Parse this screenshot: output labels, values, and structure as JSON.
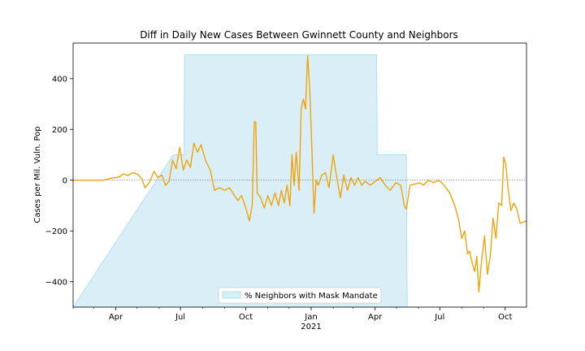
{
  "chart_data": {
    "type": "line",
    "title": "Diff in Daily New Cases Between Gwinnett County and Neighbors",
    "xlabel": "",
    "ylabel": "Cases per Mil. Vuln. Pop",
    "x_start": "2020-02-01",
    "x_end": "2021-10-31",
    "ylim": [
      -500,
      540
    ],
    "yticks": [
      -400,
      -200,
      0,
      200,
      400
    ],
    "xticks": [
      {
        "date": "2020-04-01",
        "label": "Apr"
      },
      {
        "date": "2020-07-01",
        "label": "Jul"
      },
      {
        "date": "2020-10-01",
        "label": "Oct"
      },
      {
        "date": "2021-01-01",
        "label": "Jan",
        "sublabel": "2021"
      },
      {
        "date": "2021-04-01",
        "label": "Apr"
      },
      {
        "date": "2021-07-01",
        "label": "Jul"
      },
      {
        "date": "2021-10-01",
        "label": "Oct"
      }
    ],
    "grid": false,
    "zero_line": true,
    "series": [
      {
        "name": "",
        "color": "#f0a30a",
        "points": [
          [
            "2020-02-01",
            0
          ],
          [
            "2020-03-01",
            0
          ],
          [
            "2020-03-15",
            0
          ],
          [
            "2020-03-25",
            8
          ],
          [
            "2020-04-05",
            12
          ],
          [
            "2020-04-12",
            25
          ],
          [
            "2020-04-18",
            18
          ],
          [
            "2020-04-25",
            30
          ],
          [
            "2020-05-01",
            25
          ],
          [
            "2020-05-08",
            5
          ],
          [
            "2020-05-12",
            -30
          ],
          [
            "2020-05-18",
            -10
          ],
          [
            "2020-05-25",
            35
          ],
          [
            "2020-05-30",
            10
          ],
          [
            "2020-06-05",
            20
          ],
          [
            "2020-06-10",
            -20
          ],
          [
            "2020-06-15",
            -5
          ],
          [
            "2020-06-20",
            80
          ],
          [
            "2020-06-25",
            45
          ],
          [
            "2020-06-30",
            130
          ],
          [
            "2020-07-05",
            40
          ],
          [
            "2020-07-10",
            80
          ],
          [
            "2020-07-15",
            50
          ],
          [
            "2020-07-20",
            145
          ],
          [
            "2020-07-25",
            110
          ],
          [
            "2020-07-30",
            140
          ],
          [
            "2020-08-05",
            80
          ],
          [
            "2020-08-12",
            40
          ],
          [
            "2020-08-18",
            -40
          ],
          [
            "2020-08-25",
            -30
          ],
          [
            "2020-09-01",
            -40
          ],
          [
            "2020-09-08",
            -30
          ],
          [
            "2020-09-15",
            -60
          ],
          [
            "2020-09-20",
            -80
          ],
          [
            "2020-09-25",
            -60
          ],
          [
            "2020-10-01",
            -110
          ],
          [
            "2020-10-06",
            -160
          ],
          [
            "2020-10-10",
            -100
          ],
          [
            "2020-10-13",
            230
          ],
          [
            "2020-10-15",
            230
          ],
          [
            "2020-10-17",
            -50
          ],
          [
            "2020-10-22",
            -70
          ],
          [
            "2020-10-27",
            -110
          ],
          [
            "2020-11-01",
            -60
          ],
          [
            "2020-11-06",
            -100
          ],
          [
            "2020-11-11",
            -50
          ],
          [
            "2020-11-16",
            -100
          ],
          [
            "2020-11-20",
            -40
          ],
          [
            "2020-11-24",
            -90
          ],
          [
            "2020-11-28",
            -20
          ],
          [
            "2020-12-02",
            -100
          ],
          [
            "2020-12-05",
            100
          ],
          [
            "2020-12-08",
            -20
          ],
          [
            "2020-12-11",
            110
          ],
          [
            "2020-12-15",
            -40
          ],
          [
            "2020-12-18",
            280
          ],
          [
            "2020-12-21",
            320
          ],
          [
            "2020-12-24",
            280
          ],
          [
            "2020-12-27",
            490
          ],
          [
            "2020-12-30",
            360
          ],
          [
            "2021-01-02",
            120
          ],
          [
            "2021-01-05",
            -130
          ],
          [
            "2021-01-08",
            0
          ],
          [
            "2021-01-11",
            -20
          ],
          [
            "2021-01-16",
            20
          ],
          [
            "2021-01-21",
            30
          ],
          [
            "2021-01-26",
            -30
          ],
          [
            "2021-02-01",
            100
          ],
          [
            "2021-02-06",
            10
          ],
          [
            "2021-02-11",
            -70
          ],
          [
            "2021-02-16",
            20
          ],
          [
            "2021-02-21",
            -40
          ],
          [
            "2021-02-26",
            10
          ],
          [
            "2021-03-03",
            -20
          ],
          [
            "2021-03-08",
            10
          ],
          [
            "2021-03-13",
            -20
          ],
          [
            "2021-03-18",
            -5
          ],
          [
            "2021-03-25",
            -20
          ],
          [
            "2021-04-01",
            -5
          ],
          [
            "2021-04-08",
            10
          ],
          [
            "2021-04-15",
            -20
          ],
          [
            "2021-04-22",
            -40
          ],
          [
            "2021-04-30",
            -10
          ],
          [
            "2021-05-07",
            -20
          ],
          [
            "2021-05-12",
            -100
          ],
          [
            "2021-05-15",
            -115
          ],
          [
            "2021-05-20",
            -20
          ],
          [
            "2021-05-27",
            -15
          ],
          [
            "2021-06-03",
            -10
          ],
          [
            "2021-06-08",
            -20
          ],
          [
            "2021-06-15",
            0
          ],
          [
            "2021-06-22",
            -10
          ],
          [
            "2021-06-30",
            0
          ],
          [
            "2021-07-07",
            -20
          ],
          [
            "2021-07-15",
            -50
          ],
          [
            "2021-07-22",
            -100
          ],
          [
            "2021-07-27",
            -150
          ],
          [
            "2021-08-01",
            -230
          ],
          [
            "2021-08-05",
            -200
          ],
          [
            "2021-08-09",
            -290
          ],
          [
            "2021-08-12",
            -280
          ],
          [
            "2021-08-16",
            -330
          ],
          [
            "2021-08-19",
            -360
          ],
          [
            "2021-08-22",
            -300
          ],
          [
            "2021-08-25",
            -440
          ],
          [
            "2021-08-29",
            -310
          ],
          [
            "2021-09-02",
            -220
          ],
          [
            "2021-09-06",
            -370
          ],
          [
            "2021-09-10",
            -300
          ],
          [
            "2021-09-14",
            -150
          ],
          [
            "2021-09-18",
            -230
          ],
          [
            "2021-09-22",
            -90
          ],
          [
            "2021-09-26",
            -100
          ],
          [
            "2021-09-29",
            90
          ],
          [
            "2021-10-02",
            60
          ],
          [
            "2021-10-05",
            -30
          ],
          [
            "2021-10-09",
            -120
          ],
          [
            "2021-10-13",
            -90
          ],
          [
            "2021-10-17",
            -110
          ],
          [
            "2021-10-22",
            -170
          ],
          [
            "2021-10-31",
            -160
          ]
        ]
      }
    ],
    "shaded_area": {
      "name": "% Neighbors with Mask Mandate",
      "color": "#d9eef7",
      "edge_color": "#aee0f2",
      "steps": [
        [
          "2020-02-01",
          0
        ],
        [
          "2020-06-21",
          100
        ],
        [
          "2020-07-06",
          100
        ],
        [
          "2020-07-07",
          494
        ],
        [
          "2021-04-03",
          494
        ],
        [
          "2021-04-04",
          100
        ],
        [
          "2021-05-15",
          100
        ],
        [
          "2021-05-16",
          0
        ],
        [
          "2021-10-31",
          0
        ]
      ]
    },
    "legend": {
      "position": "lower-center",
      "entries": [
        "% Neighbors with Mask Mandate"
      ]
    }
  }
}
